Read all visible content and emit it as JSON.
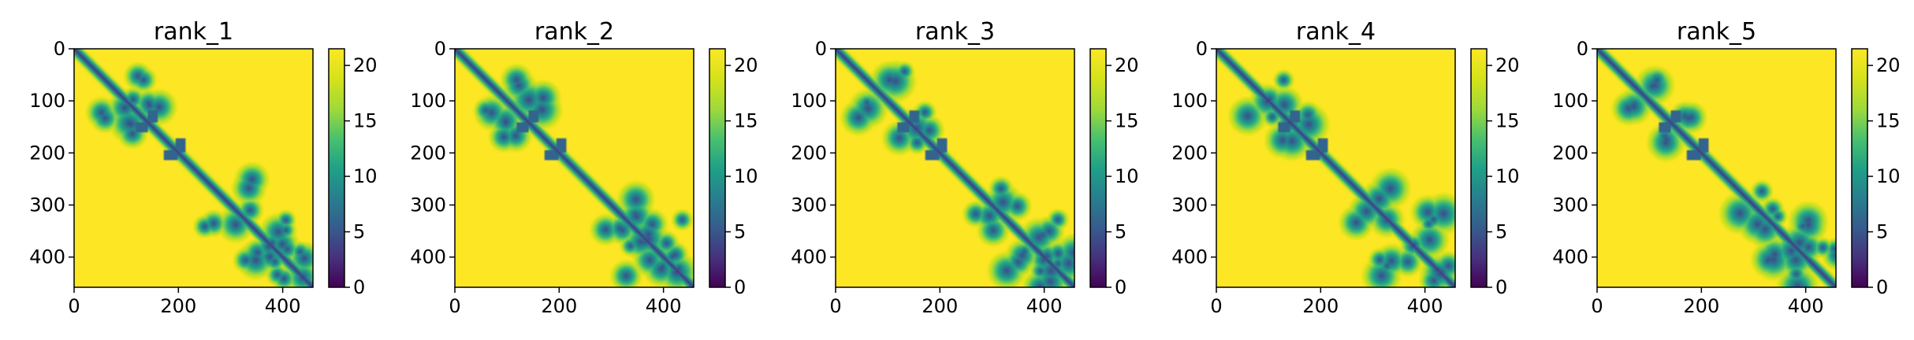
{
  "chart_data": [
    {
      "type": "heatmap",
      "title": "rank_1",
      "xlabel": "",
      "ylabel": "",
      "xlim": [
        0,
        458
      ],
      "ylim": [
        458,
        0
      ],
      "x_ticks": [
        "0",
        "200",
        "400"
      ],
      "y_ticks": [
        "0",
        "100",
        "200",
        "300",
        "400"
      ],
      "colorbar": {
        "range": [
          0,
          21.5
        ],
        "ticks": [
          "0",
          "5",
          "10",
          "15",
          "20"
        ],
        "colormap": "viridis"
      },
      "matrix_size": 458,
      "features": {
        "diagonal_band": true,
        "helix_segments": [
          [
            140,
            160
          ],
          [
            195,
            215
          ]
        ],
        "contact_clusters": [
          [
            40,
            120
          ],
          [
            90,
            160
          ],
          [
            250,
            330
          ],
          [
            310,
            420
          ],
          [
            330,
            390
          ],
          [
            380,
            440
          ]
        ]
      }
    },
    {
      "type": "heatmap",
      "title": "rank_2",
      "xlabel": "",
      "ylabel": "",
      "xlim": [
        0,
        458
      ],
      "ylim": [
        458,
        0
      ],
      "x_ticks": [
        "0",
        "200",
        "400"
      ],
      "y_ticks": [
        "0",
        "100",
        "200",
        "300",
        "400"
      ],
      "colorbar": {
        "range": [
          0,
          21.5
        ],
        "ticks": [
          "0",
          "5",
          "10",
          "15",
          "20"
        ],
        "colormap": "viridis"
      },
      "matrix_size": 458,
      "features": {
        "diagonal_band": true,
        "helix_segments": [
          [
            140,
            160
          ],
          [
            195,
            215
          ]
        ],
        "contact_clusters": [
          [
            40,
            120
          ],
          [
            90,
            160
          ],
          [
            250,
            330
          ],
          [
            310,
            420
          ],
          [
            330,
            390
          ],
          [
            380,
            440
          ]
        ]
      }
    },
    {
      "type": "heatmap",
      "title": "rank_3",
      "xlabel": "",
      "ylabel": "",
      "xlim": [
        0,
        458
      ],
      "ylim": [
        458,
        0
      ],
      "x_ticks": [
        "0",
        "200",
        "400"
      ],
      "y_ticks": [
        "0",
        "100",
        "200",
        "300",
        "400"
      ],
      "colorbar": {
        "range": [
          0,
          21.5
        ],
        "ticks": [
          "0",
          "5",
          "10",
          "15",
          "20"
        ],
        "colormap": "viridis"
      },
      "matrix_size": 458,
      "features": {
        "diagonal_band": true,
        "helix_segments": [
          [
            140,
            160
          ],
          [
            195,
            215
          ]
        ],
        "contact_clusters": [
          [
            40,
            120
          ],
          [
            90,
            160
          ],
          [
            250,
            330
          ],
          [
            310,
            420
          ],
          [
            330,
            390
          ],
          [
            380,
            440
          ]
        ]
      }
    },
    {
      "type": "heatmap",
      "title": "rank_4",
      "xlabel": "",
      "ylabel": "",
      "xlim": [
        0,
        458
      ],
      "ylim": [
        458,
        0
      ],
      "x_ticks": [
        "0",
        "200",
        "400"
      ],
      "y_ticks": [
        "0",
        "100",
        "200",
        "300",
        "400"
      ],
      "colorbar": {
        "range": [
          0,
          21.5
        ],
        "ticks": [
          "0",
          "5",
          "10",
          "15",
          "20"
        ],
        "colormap": "viridis"
      },
      "matrix_size": 458,
      "features": {
        "diagonal_band": true,
        "helix_segments": [
          [
            140,
            160
          ],
          [
            195,
            215
          ]
        ],
        "contact_clusters": [
          [
            40,
            120
          ],
          [
            90,
            160
          ],
          [
            250,
            330
          ],
          [
            310,
            420
          ],
          [
            330,
            390
          ],
          [
            380,
            440
          ]
        ]
      }
    },
    {
      "type": "heatmap",
      "title": "rank_5",
      "xlabel": "",
      "ylabel": "",
      "xlim": [
        0,
        458
      ],
      "ylim": [
        458,
        0
      ],
      "x_ticks": [
        "0",
        "200",
        "400"
      ],
      "y_ticks": [
        "0",
        "100",
        "200",
        "300",
        "400"
      ],
      "colorbar": {
        "range": [
          0,
          21.5
        ],
        "ticks": [
          "0",
          "5",
          "10",
          "15",
          "20"
        ],
        "colormap": "viridis"
      },
      "matrix_size": 458,
      "features": {
        "diagonal_band": true,
        "helix_segments": [
          [
            140,
            160
          ],
          [
            195,
            215
          ]
        ],
        "contact_clusters": [
          [
            40,
            120
          ],
          [
            90,
            160
          ],
          [
            250,
            330
          ],
          [
            310,
            420
          ],
          [
            330,
            390
          ],
          [
            380,
            440
          ]
        ]
      }
    }
  ]
}
